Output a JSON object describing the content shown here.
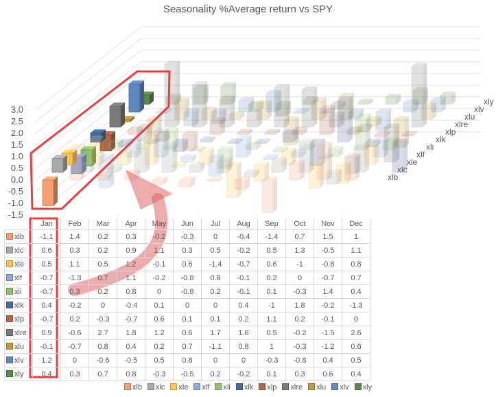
{
  "chart_data": {
    "type": "bar3d",
    "title": "Seasonality %Average return vs SPY",
    "categories": [
      "Jan",
      "Feb",
      "Mar",
      "Apr",
      "May",
      "Jun",
      "Jul",
      "Aug",
      "Sep",
      "Oct",
      "Nov",
      "Dec"
    ],
    "ylim": [
      -1.5,
      3.0
    ],
    "yticks": [
      "3.0",
      "2.5",
      "2.0",
      "1.5",
      "1.0",
      "0.5",
      "0.0",
      "-0.5",
      "-1.0",
      "-1.5"
    ],
    "highlighted_category": "Jan",
    "legend_placement": "bottom",
    "series": [
      {
        "name": "xlb",
        "color": "#f4a070",
        "values": [
          -1.1,
          1.4,
          0.2,
          0.3,
          -0.2,
          -0.3,
          0,
          -0.4,
          -1.4,
          0.7,
          1.5,
          1
        ]
      },
      {
        "name": "xlc",
        "color": "#a9a9a9",
        "values": [
          0.6,
          0.3,
          0.2,
          0.9,
          1.1,
          0.3,
          0.5,
          -0.2,
          0.5,
          1.3,
          -0.5,
          1.1
        ]
      },
      {
        "name": "xle",
        "color": "#ffc94d",
        "values": [
          0.5,
          1.1,
          0.5,
          1.2,
          -0.1,
          0.6,
          -1.4,
          -0.7,
          0.6,
          -1,
          -0.8,
          0.8
        ]
      },
      {
        "name": "xlf",
        "color": "#8ea9db",
        "values": [
          -0.7,
          -1.3,
          0.7,
          1.1,
          -0.2,
          -0.8,
          0.8,
          -0.1,
          0.2,
          0,
          -0.7,
          0.7
        ]
      },
      {
        "name": "xli",
        "color": "#8cc26a",
        "values": [
          -0.7,
          0.3,
          0.2,
          0.8,
          0,
          -0.8,
          0.2,
          -0.1,
          0.1,
          -0.3,
          1.4,
          0.4
        ]
      },
      {
        "name": "xlk",
        "color": "#4a6aa0",
        "values": [
          0.4,
          -0.2,
          0,
          -0.4,
          0.1,
          0,
          0,
          0.4,
          -1,
          1.8,
          -0.2,
          -1.3
        ]
      },
      {
        "name": "xlp",
        "color": "#b0684a",
        "values": [
          -0.7,
          0.2,
          -0.3,
          -0.7,
          0.6,
          0.1,
          0.1,
          0.2,
          1.1,
          0.2,
          -0.1,
          0
        ]
      },
      {
        "name": "xlre",
        "color": "#7a7a7a",
        "values": [
          0.9,
          -0.6,
          2.7,
          1.8,
          1.2,
          0.6,
          1.7,
          1.6,
          0.5,
          -0.2,
          -1.5,
          2.6
        ]
      },
      {
        "name": "xlu",
        "color": "#c09a3c",
        "values": [
          -0.1,
          -0.7,
          0.8,
          0.4,
          0.2,
          0.7,
          -1.1,
          0.8,
          1,
          -0.3,
          -1.2,
          0.6
        ]
      },
      {
        "name": "xlv",
        "color": "#5f88c0",
        "values": [
          1.2,
          0,
          -0.6,
          -0.5,
          0.5,
          0.8,
          0,
          0,
          -0.3,
          -0.8,
          0.4,
          0.5
        ]
      },
      {
        "name": "xly",
        "color": "#5a8a48",
        "values": [
          0.4,
          0.3,
          0.7,
          0.8,
          -0.3,
          -0.5,
          0.2,
          -0.2,
          0.1,
          0.3,
          0.6,
          0.4
        ]
      }
    ]
  }
}
